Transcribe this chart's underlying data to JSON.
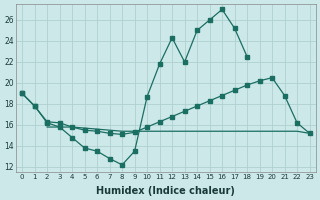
{
  "xlabel": "Humidex (Indice chaleur)",
  "background_color": "#cde8e8",
  "grid_color": "#aacccc",
  "line_color": "#1a6e62",
  "ylim": [
    11.5,
    27.5
  ],
  "yticks": [
    12,
    14,
    16,
    18,
    20,
    22,
    24,
    26
  ],
  "xlim": [
    -0.5,
    23.5
  ],
  "xticks": [
    0,
    1,
    2,
    3,
    4,
    5,
    6,
    7,
    8,
    9,
    10,
    11,
    12,
    13,
    14,
    15,
    16,
    17,
    18,
    19,
    20,
    21,
    22,
    23
  ],
  "line_peak_x": [
    0,
    1,
    2,
    3,
    4,
    5,
    6,
    7,
    8,
    9,
    10,
    11,
    12,
    13,
    14,
    15,
    16,
    17,
    18
  ],
  "line_peak_y": [
    19.0,
    17.8,
    16.2,
    15.8,
    14.8,
    13.8,
    13.5,
    12.8,
    12.2,
    13.5,
    18.7,
    21.8,
    24.3,
    22.0,
    25.0,
    26.0,
    27.0,
    25.2,
    22.5
  ],
  "line_upper_x": [
    0,
    1,
    2,
    3,
    4,
    5,
    6,
    7,
    8,
    9,
    10,
    11,
    12,
    13,
    14,
    15,
    16,
    17,
    18,
    19,
    20,
    21,
    22,
    23
  ],
  "line_upper_y": [
    19.0,
    17.8,
    16.3,
    16.2,
    15.8,
    15.5,
    15.4,
    15.2,
    15.1,
    15.3,
    15.8,
    16.3,
    16.8,
    17.3,
    17.8,
    18.3,
    18.8,
    19.3,
    19.8,
    20.2,
    20.5,
    18.8,
    16.2,
    15.2
  ],
  "line_lower_x": [
    2,
    3,
    4,
    5,
    6,
    7,
    8,
    9,
    10,
    11,
    12,
    13,
    14,
    15,
    16,
    17,
    18,
    19,
    20,
    21,
    22,
    23
  ],
  "line_lower_y": [
    15.8,
    15.8,
    15.8,
    15.7,
    15.6,
    15.5,
    15.4,
    15.4,
    15.4,
    15.4,
    15.4,
    15.4,
    15.4,
    15.4,
    15.4,
    15.4,
    15.4,
    15.4,
    15.4,
    15.4,
    15.4,
    15.2
  ]
}
